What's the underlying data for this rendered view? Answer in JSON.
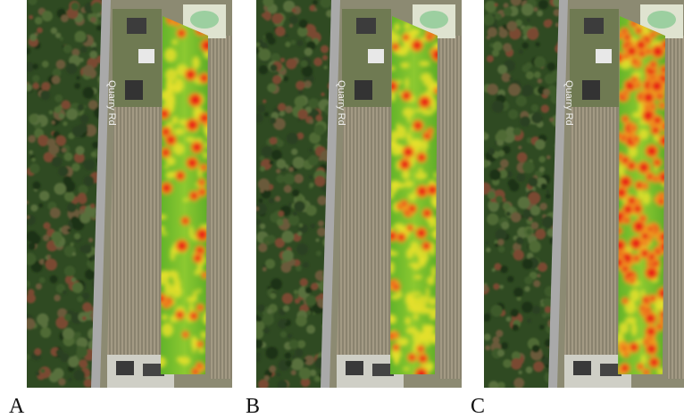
{
  "panels": [
    {
      "label": "A",
      "road_label": "Quarry Rd"
    },
    {
      "label": "B",
      "road_label": "Quarry Rd"
    },
    {
      "label": "C",
      "road_label": "Quarry Rd"
    }
  ]
}
